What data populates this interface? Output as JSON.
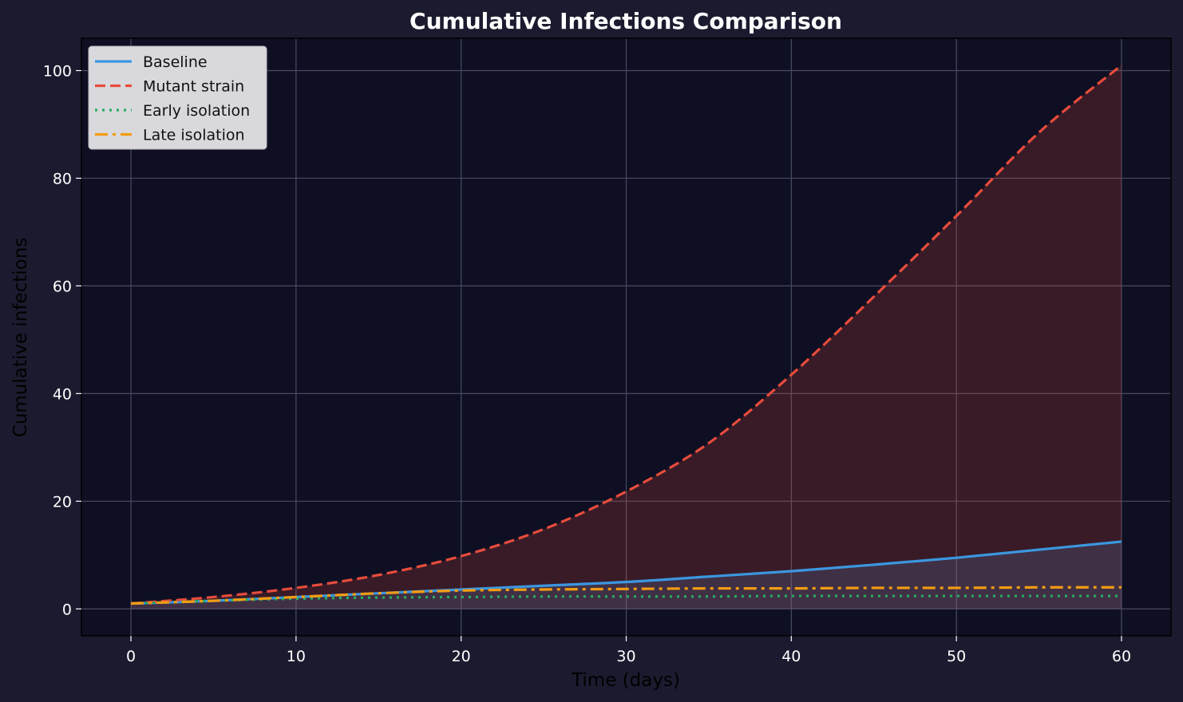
{
  "chart_data": {
    "type": "line",
    "title": "Cumulative Infections Comparison",
    "xlabel": "Time (days)",
    "ylabel": "Cumulative infections",
    "xlim": [
      -3,
      63
    ],
    "ylim": [
      -5,
      106
    ],
    "xticks": [
      0,
      10,
      20,
      30,
      40,
      50,
      60
    ],
    "yticks": [
      0,
      20,
      40,
      60,
      80,
      100
    ],
    "grid": true,
    "legend_position": "top-left",
    "x": [
      0,
      5,
      10,
      15,
      20,
      25,
      30,
      35,
      40,
      45,
      50,
      55,
      60
    ],
    "series": [
      {
        "name": "Baseline",
        "color": "#3b97e0",
        "dash": "solid",
        "fill": true,
        "values": [
          1.0,
          1.5,
          2.2,
          2.9,
          3.6,
          4.3,
          5.0,
          6.0,
          7.0,
          8.2,
          9.5,
          11.0,
          12.5
        ]
      },
      {
        "name": "Mutant strain",
        "color": "#e74c3c",
        "dash": "dashed",
        "fill": true,
        "values": [
          1.0,
          2.2,
          3.9,
          6.3,
          9.8,
          14.8,
          21.8,
          30.8,
          43.5,
          58.0,
          73.0,
          88.5,
          101.0
        ]
      },
      {
        "name": "Early isolation",
        "color": "#27ae60",
        "dash": "dotted",
        "fill": false,
        "values": [
          1.0,
          1.5,
          1.9,
          2.1,
          2.2,
          2.3,
          2.3,
          2.3,
          2.4,
          2.4,
          2.4,
          2.4,
          2.4
        ]
      },
      {
        "name": "Late isolation",
        "color": "#f39c12",
        "dash": "dashdot",
        "fill": false,
        "values": [
          1.0,
          1.5,
          2.2,
          2.9,
          3.4,
          3.6,
          3.7,
          3.8,
          3.8,
          3.9,
          3.9,
          4.0,
          4.0
        ]
      }
    ]
  },
  "colors": {
    "figure_background": "#1a1b2e",
    "plot_background": "#0e0f22",
    "grid": "#4a4b62",
    "legend_background": "#d9d9dd"
  }
}
